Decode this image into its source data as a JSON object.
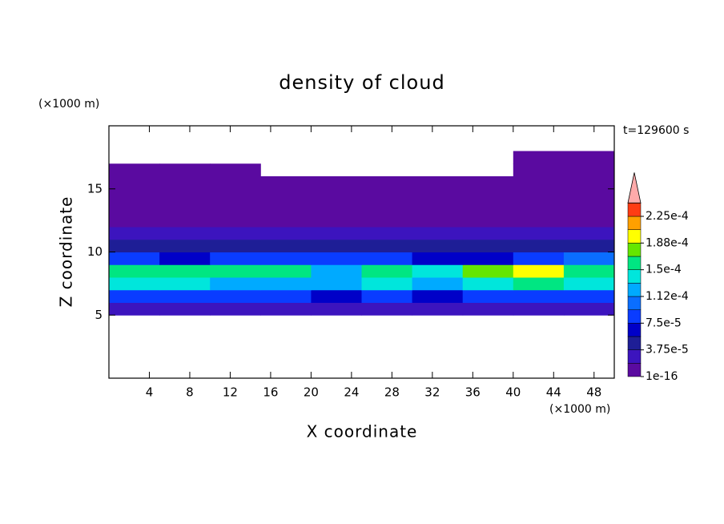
{
  "chart_data": {
    "type": "contour",
    "title": "density of cloud",
    "x_label": "X coordinate",
    "y_label": "Z coordinate",
    "x_unit": "(×1000 m)",
    "y_unit": "(×1000 m)",
    "annotation": "t=129600 s",
    "xlim": [
      0,
      50
    ],
    "ylim": [
      0,
      20
    ],
    "xticks": [
      4,
      8,
      12,
      16,
      20,
      24,
      28,
      32,
      36,
      40,
      44,
      48
    ],
    "yticks": [
      5,
      10,
      15
    ],
    "x": [
      2.5,
      7.5,
      12.5,
      17.5,
      22.5,
      27.5,
      32.5,
      37.5,
      42.5,
      47.5
    ],
    "z": [
      5.5,
      6.5,
      7.5,
      8.5,
      9.5,
      10.5,
      11.5,
      12.5,
      13.5,
      14.5,
      15.5,
      16.5,
      17.5
    ],
    "values": [
      [
        3e-05,
        3e-05,
        3e-05,
        3e-05,
        2.5e-05,
        3e-05,
        3e-05,
        3e-05,
        3e-05,
        3e-05
      ],
      [
        9e-05,
        9e-05,
        8e-05,
        8e-05,
        6e-05,
        8e-05,
        7e-05,
        8e-05,
        9e-05,
        8e-05
      ],
      [
        0.00014,
        0.000135,
        0.00013,
        0.00013,
        0.00012,
        0.000135,
        0.00013,
        0.000145,
        0.00016,
        0.00014
      ],
      [
        0.000165,
        0.00015,
        0.000155,
        0.00015,
        0.00013,
        0.000155,
        0.00014,
        0.00017,
        0.00019,
        0.00015
      ],
      [
        8e-05,
        7e-05,
        9e-05,
        8e-05,
        9e-05,
        8e-05,
        7e-05,
        6e-05,
        9e-05,
        0.0001
      ],
      [
        4e-05,
        4e-05,
        4.5e-05,
        4e-05,
        4e-05,
        4e-05,
        4e-05,
        4e-05,
        4e-05,
        5e-05
      ],
      [
        2.5e-05,
        2.5e-05,
        2.5e-05,
        2.5e-05,
        2.5e-05,
        2.5e-05,
        2.5e-05,
        2.5e-05,
        2.5e-05,
        2.5e-05
      ],
      [
        1.5e-05,
        1.5e-05,
        1.5e-05,
        1.5e-05,
        1.5e-05,
        1.5e-05,
        1.5e-05,
        1.5e-05,
        1.5e-05,
        1.5e-05
      ],
      [
        1e-05,
        1e-05,
        1e-05,
        1e-05,
        1e-05,
        1e-05,
        1e-05,
        1e-05,
        1e-05,
        1e-05
      ],
      [
        8e-06,
        8e-06,
        8e-06,
        8e-06,
        8e-06,
        8e-06,
        8e-06,
        8e-06,
        8e-06,
        8e-06
      ],
      [
        5e-06,
        5e-06,
        5e-06,
        5e-06,
        5e-06,
        3e-06,
        3e-06,
        3e-06,
        3e-06,
        5e-06
      ],
      [
        3e-06,
        3e-06,
        3e-06,
        null,
        null,
        null,
        null,
        null,
        3e-06,
        3e-06
      ],
      [
        null,
        null,
        null,
        null,
        null,
        null,
        null,
        null,
        2e-06,
        2e-06
      ]
    ],
    "levels": [
      1e-16,
      1.875e-05,
      3.75e-05,
      5.625e-05,
      7.5e-05,
      9.375e-05,
      0.0001125,
      0.00013125,
      0.00015,
      0.00016875,
      0.0001875,
      0.00020625,
      0.000225,
      0.00024375
    ],
    "colors": [
      "#5a0aa0",
      "#3c14be",
      "#1e1e96",
      "#0000c8",
      "#0a3cff",
      "#0a6eff",
      "#00aaff",
      "#00e6dc",
      "#00e682",
      "#64e600",
      "#ffff00",
      "#ffa000",
      "#ff3c14"
    ],
    "overflow_color": "#ffaaaa",
    "colorbar_ticks": [
      1e-16,
      {
        "value": 3.75e-05,
        "label": "3.75e-5"
      },
      {
        "value": 7.5e-05,
        "label": "7.5e-5"
      },
      {
        "value": 0.0001125,
        "label": "1.12e-4"
      },
      {
        "value": 0.00015,
        "label": "1.5e-4"
      },
      {
        "value": 0.0001875,
        "label": "1.88e-4"
      },
      {
        "value": 0.000225,
        "label": "2.25e-4"
      }
    ]
  }
}
